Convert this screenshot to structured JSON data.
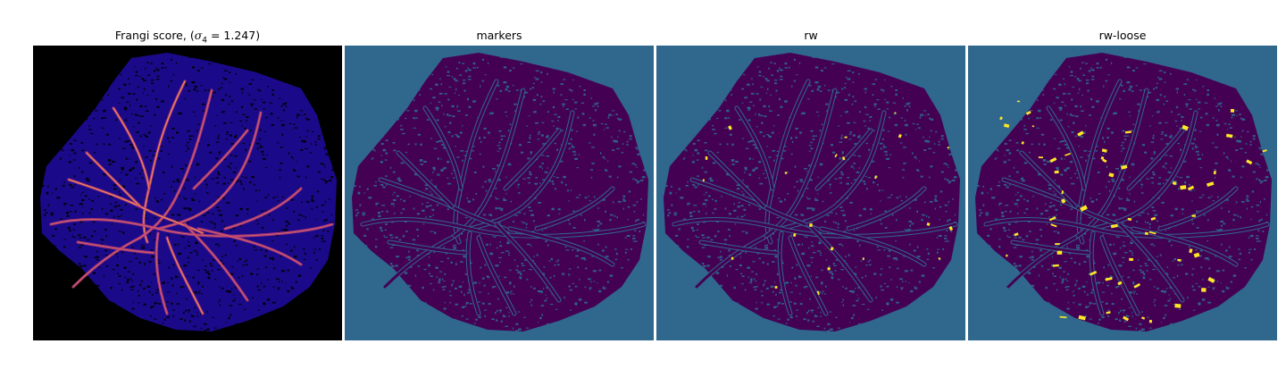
{
  "panels": [
    {
      "title_prefix": "Frangi score, (",
      "title_math": "σ",
      "title_sub": "4",
      "title_suffix": " = 1.247)",
      "colormap": "magma-like",
      "background": "#000000"
    },
    {
      "title": "markers",
      "colormap": "viridis",
      "background": "#30678d"
    },
    {
      "title": "rw",
      "colormap": "viridis",
      "background": "#30678d"
    },
    {
      "title": "rw-loose",
      "colormap": "viridis",
      "background": "#30678d"
    }
  ],
  "colors": {
    "viridis_dark": "#440154",
    "viridis_mid": "#30678d",
    "viridis_bright": "#fde725",
    "frangi_bg": "#000000",
    "frangi_tissue": "#1a0a8a",
    "frangi_vessel_hot": "#f7a14a",
    "frangi_vessel_mid": "#b5367a"
  }
}
